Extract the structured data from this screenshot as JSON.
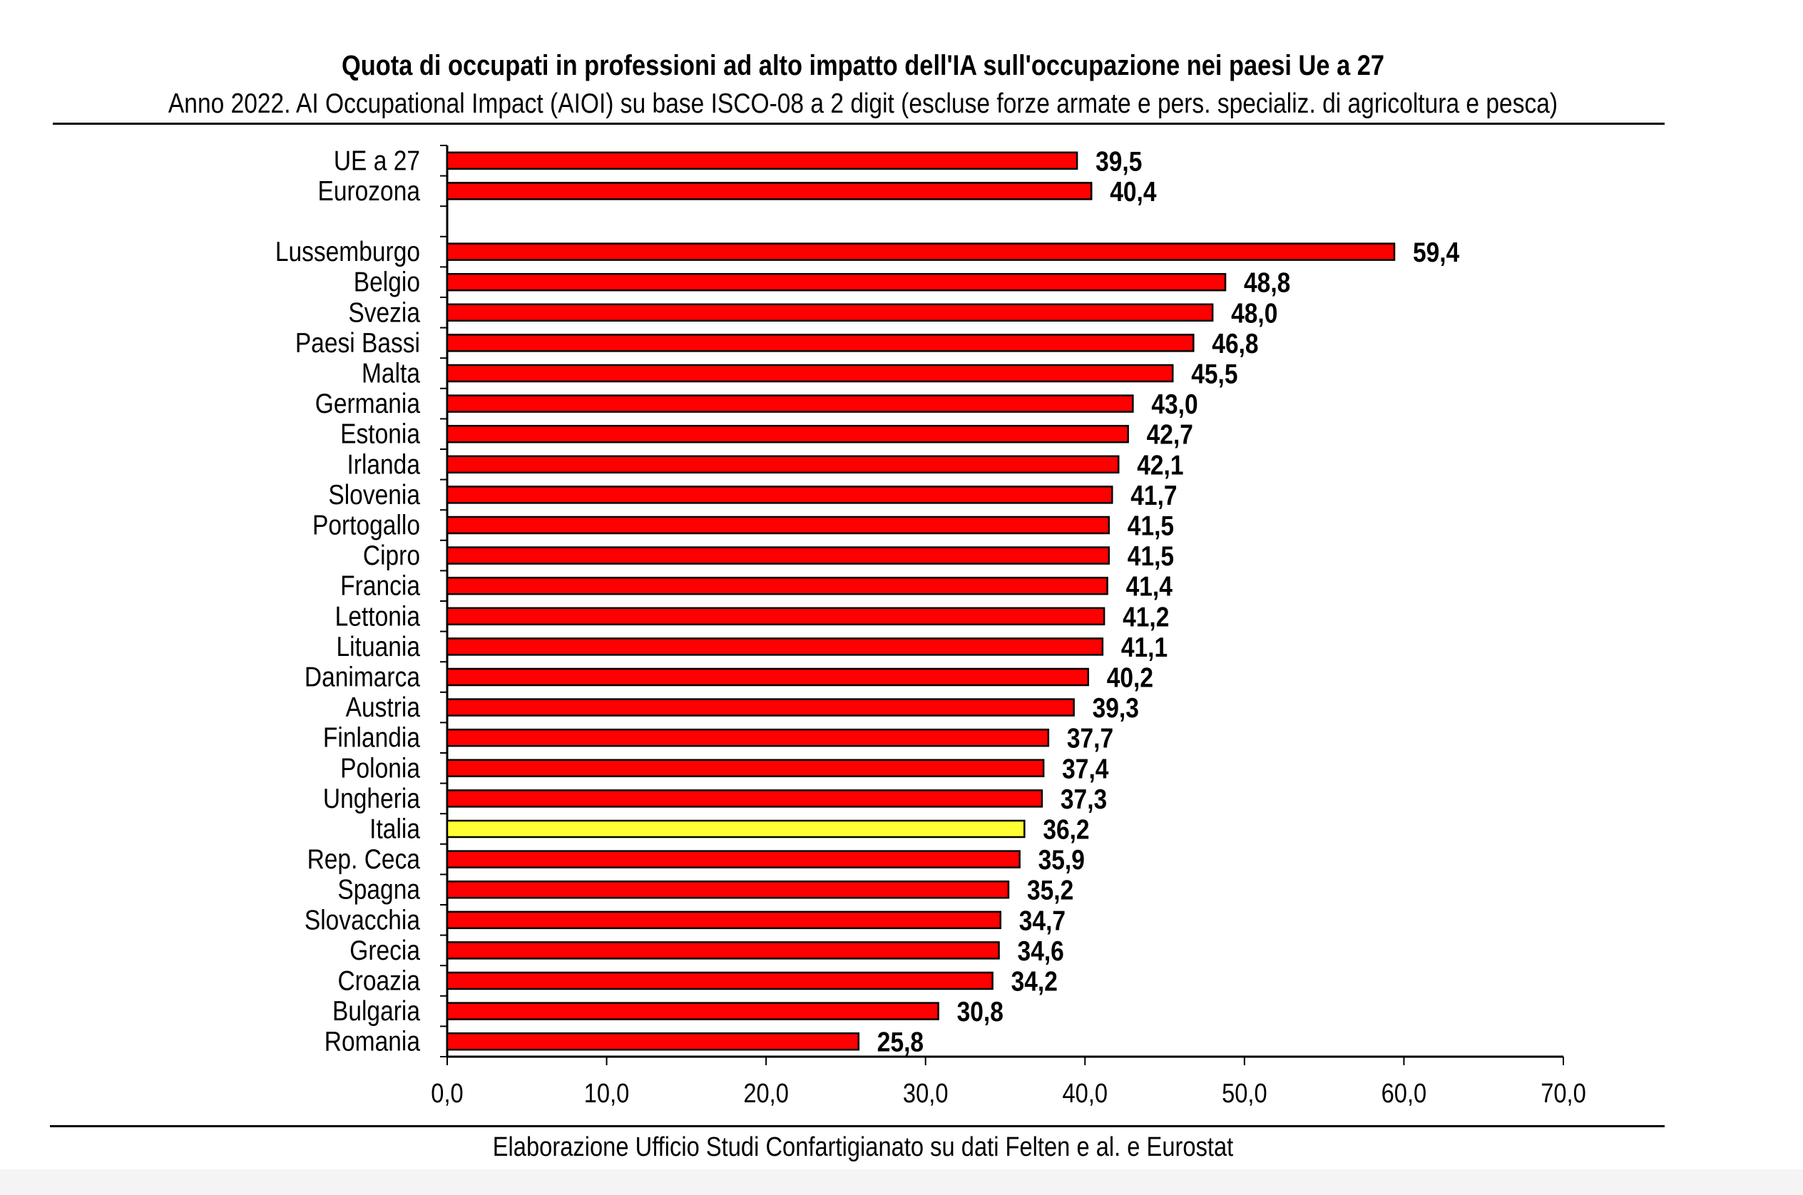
{
  "chart_data": {
    "type": "bar",
    "orientation": "horizontal",
    "title": "Quota di occupati in professioni ad alto impatto dell'IA sull'occupazione nei paesi Ue a 27",
    "subtitle": "Anno 2022. AI Occupational Impact (AIOI) su base ISCO-08 a 2 digit (escluse forze armate e pers. specializ. di agricoltura e pesca)",
    "source": "Elaborazione Ufficio Studi Confartigianato su dati Felten e al. e Eurostat",
    "categories": [
      "UE a 27",
      "Eurozona",
      "",
      "Lussemburgo",
      "Belgio",
      "Svezia",
      "Paesi Bassi",
      "Malta",
      "Germania",
      "Estonia",
      "Irlanda",
      "Slovenia",
      "Portogallo",
      "Cipro",
      "Francia",
      "Lettonia",
      "Lituania",
      "Danimarca",
      "Austria",
      "Finlandia",
      "Polonia",
      "Ungheria",
      "Italia",
      "Rep. Ceca",
      "Spagna",
      "Slovacchia",
      "Grecia",
      "Croazia",
      "Bulgaria",
      "Romania"
    ],
    "values": [
      39.5,
      40.4,
      null,
      59.4,
      48.8,
      48.0,
      46.8,
      45.5,
      43.0,
      42.7,
      42.1,
      41.7,
      41.5,
      41.5,
      41.4,
      41.2,
      41.1,
      40.2,
      39.3,
      37.7,
      37.4,
      37.3,
      36.2,
      35.9,
      35.2,
      34.7,
      34.6,
      34.2,
      30.8,
      25.8
    ],
    "data_labels": [
      "39,5",
      "40,4",
      "",
      "59,4",
      "48,8",
      "48,0",
      "46,8",
      "45,5",
      "43,0",
      "42,7",
      "42,1",
      "41,7",
      "41,5",
      "41,5",
      "41,4",
      "41,2",
      "41,1",
      "40,2",
      "39,3",
      "37,7",
      "37,4",
      "37,3",
      "36,2",
      "35,9",
      "35,2",
      "34,7",
      "34,6",
      "34,2",
      "30,8",
      "25,8"
    ],
    "highlight_category": "Italia",
    "xlim": [
      0,
      70
    ],
    "x_ticks": [
      0,
      10,
      20,
      30,
      40,
      50,
      60,
      70
    ],
    "x_tick_labels": [
      "0,0",
      "10,0",
      "20,0",
      "30,0",
      "40,0",
      "50,0",
      "60,0",
      "70,0"
    ],
    "grid": false,
    "legend": "none",
    "colors": {
      "bar": "#ff0000",
      "highlight": "#ffff33",
      "outline": "#000000"
    }
  }
}
